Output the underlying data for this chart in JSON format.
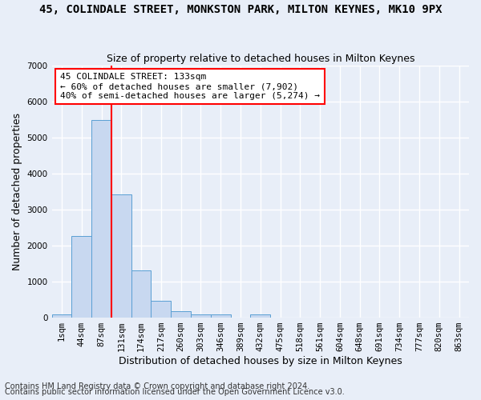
{
  "title": "45, COLINDALE STREET, MONKSTON PARK, MILTON KEYNES, MK10 9PX",
  "subtitle": "Size of property relative to detached houses in Milton Keynes",
  "xlabel": "Distribution of detached houses by size in Milton Keynes",
  "ylabel": "Number of detached properties",
  "footnote1": "Contains HM Land Registry data © Crown copyright and database right 2024.",
  "footnote2": "Contains public sector information licensed under the Open Government Licence v3.0.",
  "bin_labels": [
    "1sqm",
    "44sqm",
    "87sqm",
    "131sqm",
    "174sqm",
    "217sqm",
    "260sqm",
    "303sqm",
    "346sqm",
    "389sqm",
    "432sqm",
    "475sqm",
    "518sqm",
    "561sqm",
    "604sqm",
    "648sqm",
    "691sqm",
    "734sqm",
    "777sqm",
    "820sqm",
    "863sqm"
  ],
  "bar_heights": [
    75,
    2270,
    5490,
    3420,
    1310,
    465,
    170,
    90,
    80,
    0,
    80,
    0,
    0,
    0,
    0,
    0,
    0,
    0,
    0,
    0,
    0
  ],
  "bar_color": "#c8d8f0",
  "bar_edge_color": "#5a9fd4",
  "annotation_line1": "45 COLINDALE STREET: 133sqm",
  "annotation_line2": "← 60% of detached houses are smaller (7,902)",
  "annotation_line3": "40% of semi-detached houses are larger (5,274) →",
  "red_line_x": 2.5,
  "ylim": [
    0,
    7000
  ],
  "yticks": [
    0,
    1000,
    2000,
    3000,
    4000,
    5000,
    6000,
    7000
  ],
  "bg_color": "#e8eef8",
  "grid_color": "#ffffff",
  "title_fontsize": 10,
  "subtitle_fontsize": 9,
  "ylabel_fontsize": 9,
  "xlabel_fontsize": 9,
  "tick_fontsize": 7.5,
  "ann_fontsize": 8,
  "footnote_fontsize": 7
}
